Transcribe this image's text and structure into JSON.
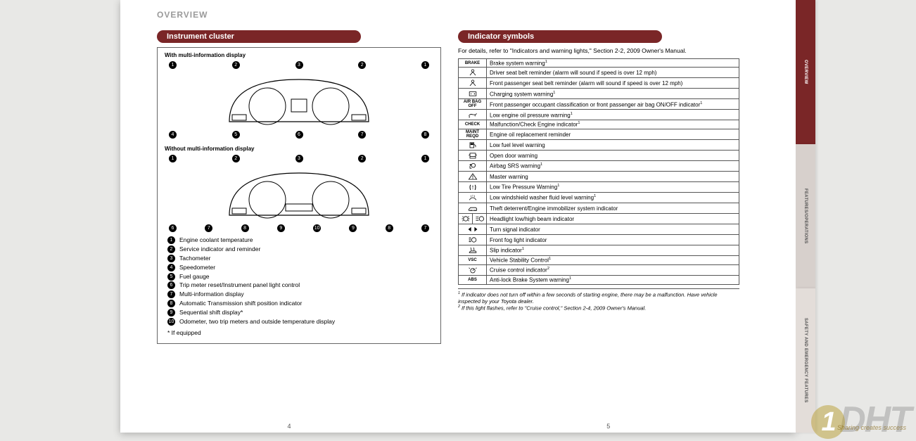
{
  "header": "OVERVIEW",
  "left": {
    "title": "Instrument cluster",
    "caption1": "With multi-information display",
    "caption2": "Without multi-information display",
    "callouts_top": [
      "1",
      "2",
      "3",
      "2",
      "1"
    ],
    "callouts_bottom": [
      "4",
      "5",
      "6",
      "7",
      "8"
    ],
    "callouts2_bottom": [
      "6",
      "7",
      "8",
      "9",
      "10",
      "9",
      "8",
      "7"
    ],
    "legend": [
      "Engine coolant temperature",
      "Service indicator and reminder",
      "Tachometer",
      "Speedometer",
      "Fuel gauge",
      "Trip meter reset/Instrument panel light control",
      "Multi-information display",
      "Automatic Transmission shift position indicator",
      "Sequential shift display*",
      "Odometer, two trip meters and outside temperature display"
    ],
    "equipped": "* If equipped",
    "pagenum": "4"
  },
  "right": {
    "title": "Indicator symbols",
    "intro": "For details, refer to \"Indicators and warning lights,\" Section 2-2, 2009 Owner's Manual.",
    "indicators": [
      {
        "icon": "BRAKE",
        "text": "Brake system warning",
        "sup": "1"
      },
      {
        "icon": "belt",
        "text": "Driver seat belt reminder (alarm will sound if speed is over 12 mph)"
      },
      {
        "icon": "belt-p",
        "text": "Front passenger seat belt reminder (alarm will sound if speed is over 12 mph)"
      },
      {
        "icon": "battery",
        "text": "Charging system warning",
        "sup": "1"
      },
      {
        "icon": "AIR BAG OFF",
        "text": "Front passenger occupant classification or front passenger air bag ON/OFF indicator",
        "sup": "1"
      },
      {
        "icon": "oil",
        "text": "Low engine oil pressure warning",
        "sup": "1"
      },
      {
        "icon": "CHECK",
        "text": "Malfunction/Check Engine indicator",
        "sup": "1"
      },
      {
        "icon": "MAINT REQD",
        "text": "Engine oil replacement reminder"
      },
      {
        "icon": "fuel",
        "text": "Low fuel level warning"
      },
      {
        "icon": "door",
        "text": "Open door warning"
      },
      {
        "icon": "airbag",
        "text": "Airbag SRS warning",
        "sup": "1"
      },
      {
        "icon": "excl",
        "text": "Master warning"
      },
      {
        "icon": "tire",
        "text": "Low Tire Pressure Warning",
        "sup": "1"
      },
      {
        "icon": "washer",
        "text": "Low windshield washer fluid level warning",
        "sup": "1"
      },
      {
        "icon": "car-key",
        "text": "Theft deterrent/Engine immobilizer system indicator"
      },
      {
        "icon": "beam",
        "dual": true,
        "text": "Headlight low/high beam indicator"
      },
      {
        "icon": "turn",
        "text": "Turn signal indicator"
      },
      {
        "icon": "fog",
        "text": "Front fog light indicator"
      },
      {
        "icon": "slip",
        "text": "Slip indicator",
        "sup": "1"
      },
      {
        "icon": "VSC",
        "text": "Vehicle Stability Control",
        "sup": "1"
      },
      {
        "icon": "cruise",
        "text": "Cruise control indicator",
        "sup": "2"
      },
      {
        "icon": "ABS",
        "text": "Anti-lock Brake System warning",
        "sup": "1"
      }
    ],
    "footnotes": [
      "If indicator does not turn off within a few seconds of starting engine, there may be a malfunction. Have vehicle inspected by your Toyota dealer.",
      "If this light flashes, refer to \"Cruise control,\" Section 2-4, 2009 Owner's Manual."
    ],
    "pagenum": "5"
  },
  "tabs": [
    "OVERVIEW",
    "FEATURES/OPERATIONS",
    "SAFETY AND EMERGENCY FEATURES"
  ],
  "watermark": {
    "num": "1",
    "text": "DHT",
    "sub": "Sharing creates success"
  }
}
